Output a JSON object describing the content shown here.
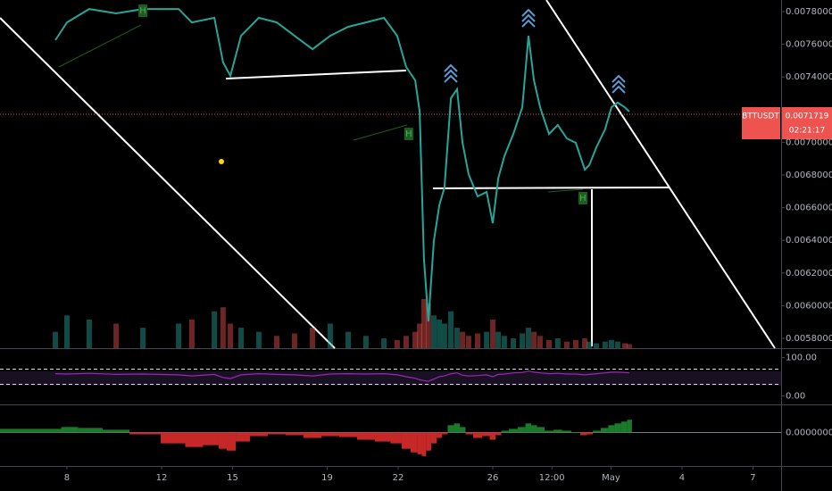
{
  "chart_data": {
    "type": "line",
    "symbol": "BTTUSDT",
    "countdown": "02:21:17",
    "last_price": 0.0071719,
    "color": "#26a69a",
    "up_color": "#26a69a",
    "down_color": "#ef5350",
    "xlim": [
      5.17,
      38.19
    ],
    "xticks": [
      8,
      12,
      15,
      19,
      22,
      26,
      {
        "value": 28.5,
        "label": "12:00"
      },
      {
        "value": 31,
        "label": "May"
      },
      {
        "value": 34,
        "label": "4"
      },
      {
        "value": 37,
        "label": "7"
      }
    ],
    "ylim": [
      0.00574,
      0.007871
    ],
    "yticks": [
      {
        "value": 0.0058,
        "label": "0.0058000"
      },
      {
        "value": 0.006,
        "label": "0.0060000"
      },
      {
        "value": 0.0062,
        "label": "0.0062000"
      },
      {
        "value": 0.0064,
        "label": "0.0064000"
      },
      {
        "value": 0.0066,
        "label": "0.0066000"
      },
      {
        "value": 0.0068,
        "label": "0.0068000"
      },
      {
        "value": 0.007,
        "label": "0.0070000"
      },
      {
        "value": 0.0074,
        "label": "0.0074000"
      },
      {
        "value": 0.0076,
        "label": "0.0076000"
      },
      {
        "value": 0.0078,
        "label": "0.0078000"
      }
    ],
    "x": [
      7.51,
      8,
      8.94,
      10.08,
      11.21,
      12.72,
      13.28,
      14.23,
      14.6,
      14.91,
      15.36,
      16.11,
      16.87,
      17.62,
      18.38,
      19.13,
      19.89,
      20.64,
      21.4,
      21.96,
      22.34,
      22.72,
      22.91,
      23.09,
      23.28,
      23.51,
      23.74,
      23.96,
      24.23,
      24.49,
      24.72,
      24.98,
      25.36,
      25.74,
      26,
      26.23,
      26.49,
      26.87,
      27.25,
      27.51,
      27.74,
      28,
      28.38,
      28.75,
      29.13,
      29.51,
      29.89,
      30.08,
      30.38,
      30.75,
      31.02,
      31.28,
      31.58,
      31.77
    ],
    "values": [
      0.007625,
      0.007734,
      0.007816,
      0.007789,
      0.007816,
      0.007816,
      0.007734,
      0.007762,
      0.007489,
      0.007407,
      0.007652,
      0.007762,
      0.007734,
      0.007652,
      0.00757,
      0.007652,
      0.007707,
      0.007734,
      0.007762,
      0.007652,
      0.007461,
      0.007379,
      0.007188,
      0.006286,
      0.005904,
      0.006396,
      0.006614,
      0.006723,
      0.00727,
      0.007325,
      0.006997,
      0.006805,
      0.006669,
      0.006696,
      0.006505,
      0.006778,
      0.006915,
      0.007051,
      0.007215,
      0.007652,
      0.007379,
      0.007215,
      0.007051,
      0.007106,
      0.007024,
      0.006997,
      0.006833,
      0.00686,
      0.006969,
      0.007079,
      0.007215,
      0.007243,
      0.007215,
      0.007188
    ],
    "volume": {
      "values": [
        20,
        40,
        35,
        30,
        25,
        30,
        35,
        45,
        50,
        30,
        25,
        20,
        15,
        18,
        25,
        30,
        20,
        15,
        12,
        10,
        15,
        20,
        30,
        60,
        55,
        40,
        35,
        30,
        45,
        25,
        20,
        15,
        18,
        20,
        35,
        20,
        15,
        12,
        18,
        25,
        20,
        15,
        10,
        12,
        8,
        10,
        12,
        8,
        6,
        8,
        10,
        8,
        6,
        5
      ]
    },
    "markers": [
      {
        "label": "H",
        "x": 11.21,
        "price": 0.007805
      },
      {
        "label": "H",
        "x": 22.45,
        "price": 0.007051
      },
      {
        "label": "H",
        "x": 29.81,
        "price": 0.006658
      }
    ],
    "rsi": {
      "color": "#9c27b0",
      "ylim": [
        -22.5,
        122.5
      ],
      "yticks": [
        {
          "value": 100,
          "label": "100.00"
        },
        {
          "value": 0,
          "label": "0.00"
        }
      ],
      "bands": [
        30,
        70
      ],
      "values": [
        58,
        57,
        59,
        56,
        57,
        55,
        52,
        56,
        48,
        45,
        55,
        58,
        56,
        55,
        52,
        57,
        58,
        57,
        58,
        55,
        50,
        46,
        42,
        40,
        38,
        44,
        50,
        52,
        58,
        60,
        54,
        52,
        53,
        55,
        50,
        56,
        57,
        60,
        61,
        65,
        62,
        60,
        58,
        59,
        57,
        57,
        55,
        56,
        58,
        60,
        62,
        62,
        61,
        60
      ]
    },
    "oscillator": {
      "ylim": [
        -3.7e-05,
        3e-05
      ],
      "yticks": [
        {
          "value": 0,
          "label": "0.0000000"
        }
      ],
      "values": [
        4e-06,
        6e-06,
        5e-06,
        3e-06,
        -2e-06,
        -1.2e-05,
        -1.6e-05,
        -1.4e-05,
        -1.8e-05,
        -2e-05,
        -1e-05,
        -4e-06,
        -2e-06,
        -3e-06,
        -6e-06,
        -4e-06,
        -5e-06,
        -8e-06,
        -1e-05,
        -1.2e-05,
        -1.8e-05,
        -2.2e-05,
        -2.4e-05,
        -2.6e-05,
        -2e-05,
        -1.2e-05,
        -6e-06,
        -2e-06,
        8e-06,
        1e-05,
        6e-06,
        -2e-06,
        -6e-06,
        -4e-06,
        -8e-06,
        -3e-06,
        2e-06,
        4e-06,
        6e-06,
        1e-05,
        8e-06,
        6e-06,
        2e-06,
        3e-06,
        2e-06,
        0,
        -3e-06,
        -2e-06,
        2e-06,
        5e-06,
        8e-06,
        1e-05,
        1.2e-05,
        1.4e-05
      ]
    }
  }
}
